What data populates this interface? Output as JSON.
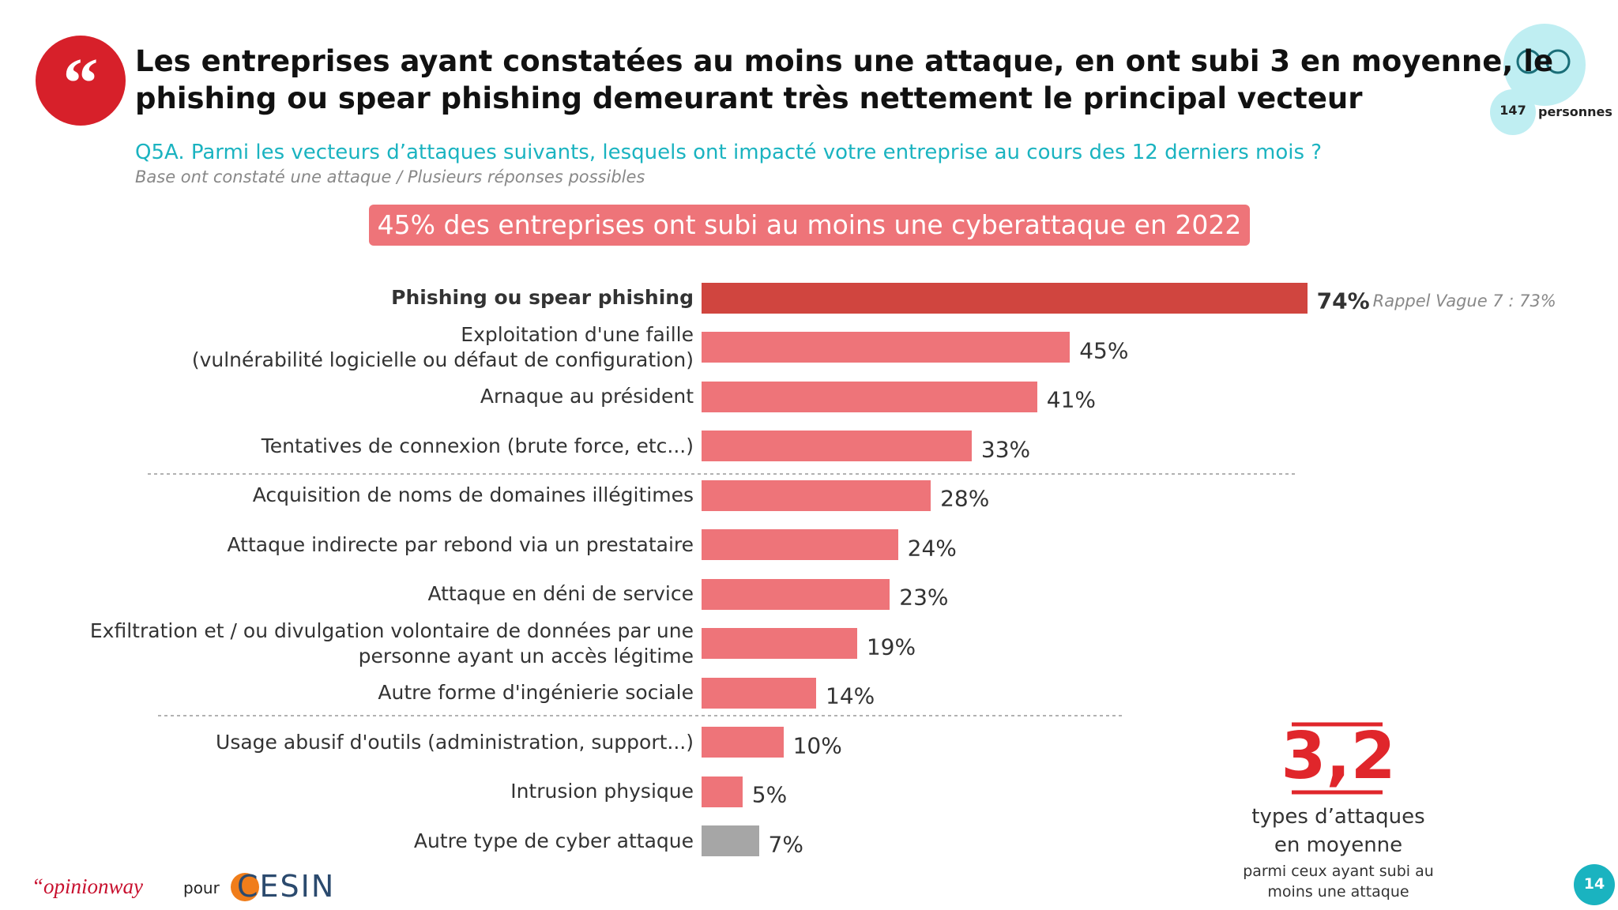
{
  "chart_data": {
    "type": "bar",
    "title": "Les entreprises ayant constatées au moins une attaque, en ont subi 3 en moyenne, le\nphishing ou spear phishing demeurant très nettement le principal vecteur",
    "subtitle": "Q5A. Parmi les vecteurs d’attaques suivants, lesquels ont impacté votre entreprise au cours des 12 derniers mois ?",
    "note": "Base ont constaté une attaque / Plusieurs réponses possibles",
    "banner": "45% des entreprises ont subi au moins une cyberattaque en 2022",
    "categories": [
      "Phishing ou spear phishing",
      "Exploitation d'une faille\n(vulnérabilité logicielle ou défaut de configuration)",
      "Arnaque au président",
      "Tentatives de connexion (brute force, etc...)",
      "Acquisition de noms de domaines illégitimes",
      "Attaque indirecte par rebond via un prestataire",
      "Attaque en déni de service",
      "Exfiltration et / ou divulgation volontaire de données par une\npersonne ayant un accès légitime",
      "Autre forme d'ingénierie sociale",
      "Usage abusif d'outils (administration, support...)",
      "Intrusion physique",
      "Autre type de cyber attaque"
    ],
    "values": [
      74,
      45,
      41,
      33,
      28,
      24,
      23,
      19,
      14,
      10,
      5,
      7
    ],
    "value_labels": [
      "74%",
      "45%",
      "41%",
      "33%",
      "28%",
      "24%",
      "23%",
      "19%",
      "14%",
      "10%",
      "5%",
      "7%"
    ],
    "colors": [
      "#d0453f",
      "#ee7479",
      "#ee7479",
      "#ee7479",
      "#ee7479",
      "#ee7479",
      "#ee7479",
      "#ee7479",
      "#ee7479",
      "#ee7479",
      "#ee7479",
      "#a6a6a6"
    ],
    "annotation": "Rappel Vague 7 : 73%",
    "kpi": {
      "value": "3,2",
      "label": "types d’attaques\nen moyenne",
      "sublabel": "parmi ceux ayant subi au\nmoins une attaque"
    },
    "sample": {
      "count": "147",
      "label": "personnes"
    },
    "footer": {
      "brand": "“opinionway",
      "pour": "pour",
      "client": "CESIN",
      "page": "14"
    }
  }
}
